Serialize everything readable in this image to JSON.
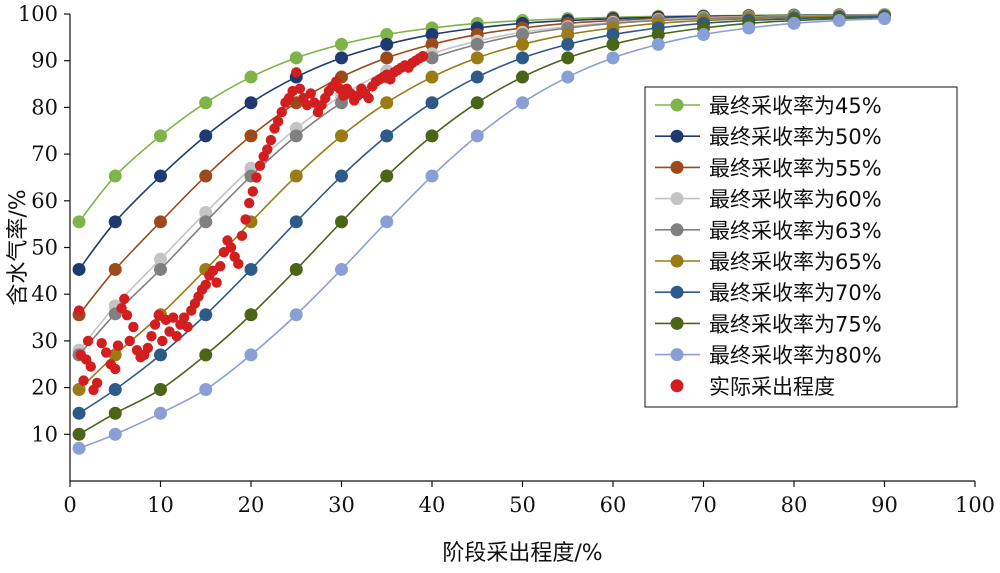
{
  "chart_data": {
    "type": "line",
    "xlabel": "阶段采出程度/%",
    "ylabel": "含水气率/%",
    "xlim": [
      0,
      100
    ],
    "ylim": [
      0,
      100
    ],
    "x_ticks": [
      "0",
      "10",
      "20",
      "30",
      "40",
      "50",
      "60",
      "70",
      "80",
      "90",
      "100"
    ],
    "y_ticks": [
      "10",
      "20",
      "30",
      "40",
      "50",
      "60",
      "70",
      "80",
      "90",
      "100"
    ],
    "grid": false,
    "legend_position": "right",
    "x": [
      1,
      5,
      10,
      15,
      20,
      25,
      30,
      35,
      40,
      45,
      50,
      55,
      60,
      65,
      70,
      75,
      80,
      85,
      90
    ],
    "series": [
      {
        "name": "最终采收率为45%",
        "color": "#7fb548",
        "values": [
          55.5,
          65.3,
          73.9,
          81.0,
          86.5,
          90.6,
          93.5,
          95.6,
          97.0,
          98.0,
          98.6,
          99.0,
          99.3,
          99.5,
          99.6,
          99.7,
          99.8,
          99.8,
          99.9
        ]
      },
      {
        "name": "最终采收率为50%",
        "color": "#1f3a73",
        "values": [
          45.3,
          55.5,
          65.3,
          73.9,
          81.0,
          86.5,
          90.6,
          93.5,
          95.6,
          97.0,
          98.0,
          98.6,
          99.0,
          99.3,
          99.5,
          99.6,
          99.7,
          99.8,
          99.8
        ]
      },
      {
        "name": "最终采收率为55%",
        "color": "#9c4a1a",
        "values": [
          35.6,
          45.3,
          55.5,
          65.3,
          73.9,
          81.0,
          86.5,
          90.6,
          93.5,
          95.6,
          97.0,
          98.0,
          98.6,
          99.0,
          99.3,
          99.5,
          99.6,
          99.7,
          99.8
        ]
      },
      {
        "name": "最终采收率为60%",
        "color": "#c4c4c4",
        "values": [
          28.0,
          37.5,
          47.5,
          57.5,
          67.0,
          75.5,
          82.5,
          87.8,
          91.5,
          94.2,
          96.1,
          97.3,
          98.2,
          98.8,
          99.2,
          99.4,
          99.6,
          99.7,
          99.8
        ]
      },
      {
        "name": "最终采收率为63%",
        "color": "#808080",
        "values": [
          27.0,
          35.8,
          45.3,
          55.5,
          65.3,
          73.9,
          81.0,
          86.5,
          90.6,
          93.5,
          95.6,
          97.0,
          98.0,
          98.6,
          99.0,
          99.3,
          99.5,
          99.6,
          99.7
        ]
      },
      {
        "name": "最终采收率为65%",
        "color": "#9a7b16",
        "values": [
          19.6,
          27.0,
          35.6,
          45.3,
          55.5,
          65.3,
          73.9,
          81.0,
          86.5,
          90.6,
          93.5,
          95.6,
          97.0,
          98.0,
          98.6,
          99.0,
          99.3,
          99.5,
          99.6
        ]
      },
      {
        "name": "最终采收率为70%",
        "color": "#2e5a8a",
        "values": [
          14.5,
          19.6,
          27.0,
          35.6,
          45.3,
          55.5,
          65.3,
          73.9,
          81.0,
          86.5,
          90.6,
          93.5,
          95.6,
          97.0,
          98.0,
          98.6,
          99.0,
          99.3,
          99.5
        ]
      },
      {
        "name": "最终采收率为75%",
        "color": "#4a6418",
        "values": [
          10.0,
          14.5,
          19.6,
          27.0,
          35.6,
          45.3,
          55.5,
          65.3,
          73.9,
          81.0,
          86.5,
          90.6,
          93.5,
          95.6,
          97.0,
          98.0,
          98.6,
          99.0,
          99.3
        ]
      },
      {
        "name": "最终采收率为80%",
        "color": "#8a9fd6",
        "values": [
          7.0,
          10.0,
          14.5,
          19.6,
          27.0,
          35.6,
          45.3,
          55.5,
          65.3,
          73.9,
          81.0,
          86.5,
          90.6,
          93.5,
          95.6,
          97.0,
          98.0,
          98.6,
          99.0
        ]
      }
    ],
    "scatter": {
      "name": "实际采出程度",
      "color": "#d21e1e",
      "points": [
        [
          1.0,
          36.5
        ],
        [
          1.2,
          27.0
        ],
        [
          1.5,
          21.5
        ],
        [
          1.8,
          26.0
        ],
        [
          2.0,
          30.0
        ],
        [
          2.3,
          24.5
        ],
        [
          2.6,
          19.5
        ],
        [
          3.0,
          21.0
        ],
        [
          3.5,
          29.5
        ],
        [
          4.0,
          27.5
        ],
        [
          4.5,
          25.0
        ],
        [
          5.0,
          24.0
        ],
        [
          5.3,
          29.0
        ],
        [
          5.7,
          37.0
        ],
        [
          6.0,
          39.0
        ],
        [
          6.3,
          35.5
        ],
        [
          6.6,
          30.0
        ],
        [
          7.0,
          33.0
        ],
        [
          7.4,
          28.0
        ],
        [
          7.8,
          26.5
        ],
        [
          8.2,
          27.0
        ],
        [
          8.6,
          28.5
        ],
        [
          9.0,
          31.0
        ],
        [
          9.4,
          33.5
        ],
        [
          9.8,
          35.5
        ],
        [
          10.2,
          30.0
        ],
        [
          10.6,
          34.5
        ],
        [
          11.0,
          32.0
        ],
        [
          11.4,
          35.0
        ],
        [
          11.8,
          31.0
        ],
        [
          12.2,
          33.5
        ],
        [
          12.6,
          35.0
        ],
        [
          13.0,
          33.0
        ],
        [
          13.4,
          36.5
        ],
        [
          13.8,
          38.0
        ],
        [
          14.2,
          39.5
        ],
        [
          14.6,
          41.0
        ],
        [
          15.0,
          42.0
        ],
        [
          15.4,
          44.0
        ],
        [
          15.8,
          45.0
        ],
        [
          16.2,
          42.5
        ],
        [
          16.6,
          46.0
        ],
        [
          17.0,
          49.0
        ],
        [
          17.4,
          51.5
        ],
        [
          17.8,
          50.0
        ],
        [
          18.2,
          48.0
        ],
        [
          18.6,
          46.5
        ],
        [
          19.0,
          52.5
        ],
        [
          19.4,
          56.0
        ],
        [
          19.8,
          59.5
        ],
        [
          20.2,
          62.0
        ],
        [
          20.6,
          65.0
        ],
        [
          21.0,
          67.5
        ],
        [
          21.4,
          69.5
        ],
        [
          21.8,
          71.0
        ],
        [
          22.2,
          73.0
        ],
        [
          22.6,
          75.5
        ],
        [
          23.0,
          77.0
        ],
        [
          23.4,
          79.0
        ],
        [
          23.8,
          81.0
        ],
        [
          24.2,
          82.0
        ],
        [
          24.6,
          83.5
        ],
        [
          25.0,
          87.5
        ],
        [
          25.4,
          84.0
        ],
        [
          25.8,
          82.0
        ],
        [
          26.2,
          80.5
        ],
        [
          26.6,
          83.0
        ],
        [
          27.0,
          81.0
        ],
        [
          27.4,
          79.0
        ],
        [
          27.8,
          80.5
        ],
        [
          28.2,
          82.0
        ],
        [
          28.6,
          83.5
        ],
        [
          29.0,
          84.5
        ],
        [
          29.4,
          85.5
        ],
        [
          29.8,
          84.0
        ],
        [
          30.2,
          82.5
        ],
        [
          30.6,
          84.0
        ],
        [
          31.0,
          83.0
        ],
        [
          31.4,
          81.5
        ],
        [
          31.8,
          82.5
        ],
        [
          32.2,
          84.0
        ],
        [
          32.6,
          83.0
        ],
        [
          33.0,
          82.0
        ],
        [
          33.4,
          84.5
        ],
        [
          33.8,
          85.5
        ],
        [
          34.2,
          86.0
        ],
        [
          34.6,
          86.5
        ],
        [
          35.0,
          87.0
        ],
        [
          35.4,
          86.0
        ],
        [
          35.8,
          87.5
        ],
        [
          36.2,
          88.0
        ],
        [
          36.6,
          88.5
        ],
        [
          37.0,
          89.0
        ],
        [
          37.4,
          88.5
        ],
        [
          37.8,
          89.5
        ],
        [
          38.2,
          90.0
        ],
        [
          38.6,
          90.5
        ],
        [
          39.0,
          91.0
        ]
      ]
    }
  }
}
